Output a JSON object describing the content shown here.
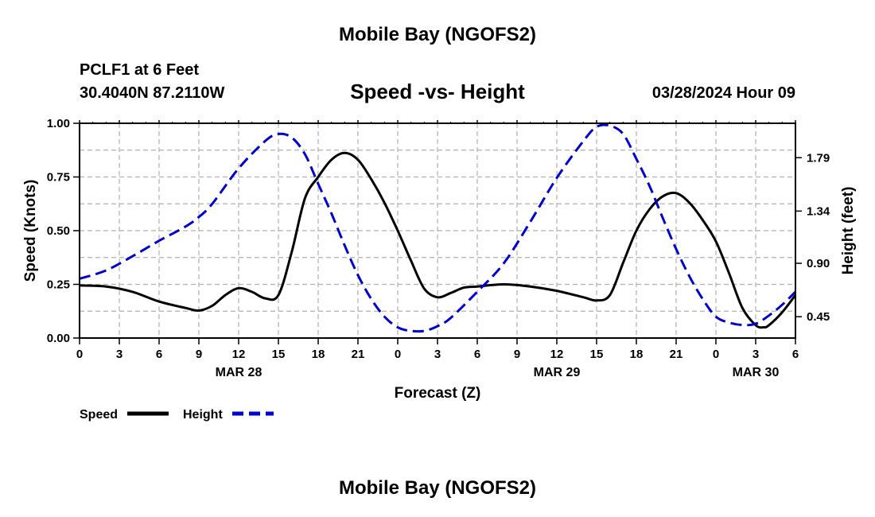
{
  "title_top": "Mobile Bay (NGOFS2)",
  "title_bottom": "Mobile Bay (NGOFS2)",
  "station": "PCLF1 at 6 Feet",
  "coords": "30.4040N  87.2110W",
  "subtitle": "Speed -vs- Height",
  "datetime": "03/28/2024 Hour 09",
  "colors": {
    "speed": "#000000",
    "height": "#0000cc",
    "grid": "#b0b0b0"
  },
  "chart_data": {
    "type": "line",
    "xlabel": "Forecast (Z)",
    "ylabel_left": "Speed (Knots)",
    "ylabel_right": "Height (feet)",
    "x_range": [
      0,
      54
    ],
    "x_tick_values": [
      0,
      3,
      6,
      9,
      12,
      15,
      18,
      21,
      24,
      27,
      30,
      33,
      36,
      39,
      42,
      45,
      48,
      51,
      54
    ],
    "x_tick_labels": [
      "0",
      "3",
      "6",
      "9",
      "12",
      "15",
      "18",
      "21",
      "0",
      "3",
      "6",
      "9",
      "12",
      "15",
      "18",
      "21",
      "0",
      "3",
      "6"
    ],
    "date_labels": [
      {
        "x": 12,
        "text": "MAR 28"
      },
      {
        "x": 36,
        "text": "MAR 29"
      },
      {
        "x": 51,
        "text": "MAR 30"
      }
    ],
    "y_left_range": [
      0,
      1.0
    ],
    "y_left_ticks": [
      0.0,
      0.25,
      0.5,
      0.75,
      1.0
    ],
    "y_left_tick_labels": [
      "0.00",
      "0.25",
      "0.50",
      "0.75",
      "1.00"
    ],
    "y_right_range": [
      0.27,
      2.08
    ],
    "y_right_ticks": [
      0.45,
      0.9,
      1.34,
      1.79
    ],
    "y_right_tick_labels": [
      "0.45",
      "0.90",
      "1.34",
      "1.79"
    ],
    "grid": true,
    "legend_position": "bottom-left",
    "series": [
      {
        "name": "Speed",
        "axis": "left",
        "style": "solid",
        "points": [
          [
            0,
            0.245
          ],
          [
            2,
            0.24
          ],
          [
            4,
            0.215
          ],
          [
            6,
            0.17
          ],
          [
            8,
            0.14
          ],
          [
            9,
            0.128
          ],
          [
            10,
            0.15
          ],
          [
            11,
            0.2
          ],
          [
            12,
            0.232
          ],
          [
            13,
            0.215
          ],
          [
            14,
            0.185
          ],
          [
            15,
            0.2
          ],
          [
            16,
            0.4
          ],
          [
            17,
            0.65
          ],
          [
            18,
            0.75
          ],
          [
            19,
            0.83
          ],
          [
            20,
            0.862
          ],
          [
            21,
            0.83
          ],
          [
            22,
            0.74
          ],
          [
            23,
            0.63
          ],
          [
            24,
            0.5
          ],
          [
            25,
            0.36
          ],
          [
            26,
            0.23
          ],
          [
            27,
            0.19
          ],
          [
            28,
            0.21
          ],
          [
            29,
            0.235
          ],
          [
            30,
            0.24
          ],
          [
            32,
            0.25
          ],
          [
            34,
            0.24
          ],
          [
            36,
            0.22
          ],
          [
            38,
            0.19
          ],
          [
            39,
            0.175
          ],
          [
            40,
            0.2
          ],
          [
            41,
            0.35
          ],
          [
            42,
            0.5
          ],
          [
            43,
            0.6
          ],
          [
            44,
            0.66
          ],
          [
            45,
            0.675
          ],
          [
            46,
            0.63
          ],
          [
            47,
            0.55
          ],
          [
            48,
            0.45
          ],
          [
            49,
            0.3
          ],
          [
            50,
            0.14
          ],
          [
            51,
            0.06
          ],
          [
            51.6,
            0.05
          ],
          [
            52,
            0.06
          ],
          [
            53,
            0.12
          ],
          [
            54,
            0.2
          ]
        ]
      },
      {
        "name": "Height",
        "axis": "right",
        "style": "dashed",
        "points": [
          [
            0,
            0.77
          ],
          [
            2,
            0.84
          ],
          [
            4,
            0.96
          ],
          [
            6,
            1.09
          ],
          [
            8,
            1.21
          ],
          [
            9,
            1.29
          ],
          [
            10,
            1.4
          ],
          [
            12,
            1.7
          ],
          [
            14,
            1.93
          ],
          [
            15,
            1.99
          ],
          [
            16,
            1.96
          ],
          [
            17,
            1.82
          ],
          [
            18,
            1.57
          ],
          [
            19,
            1.32
          ],
          [
            20,
            1.05
          ],
          [
            21,
            0.8
          ],
          [
            22,
            0.6
          ],
          [
            23,
            0.45
          ],
          [
            24,
            0.36
          ],
          [
            25,
            0.33
          ],
          [
            26,
            0.33
          ],
          [
            27,
            0.37
          ],
          [
            28,
            0.44
          ],
          [
            30,
            0.66
          ],
          [
            32,
            0.9
          ],
          [
            34,
            1.25
          ],
          [
            36,
            1.62
          ],
          [
            38,
            1.93
          ],
          [
            39,
            2.05
          ],
          [
            40,
            2.06
          ],
          [
            41,
            1.99
          ],
          [
            42,
            1.78
          ],
          [
            43,
            1.55
          ],
          [
            44,
            1.28
          ],
          [
            45,
            1.02
          ],
          [
            46,
            0.79
          ],
          [
            47,
            0.6
          ],
          [
            48,
            0.45
          ],
          [
            49,
            0.4
          ],
          [
            50,
            0.38
          ],
          [
            51,
            0.39
          ],
          [
            52,
            0.46
          ],
          [
            53,
            0.55
          ],
          [
            54,
            0.66
          ]
        ]
      }
    ]
  }
}
